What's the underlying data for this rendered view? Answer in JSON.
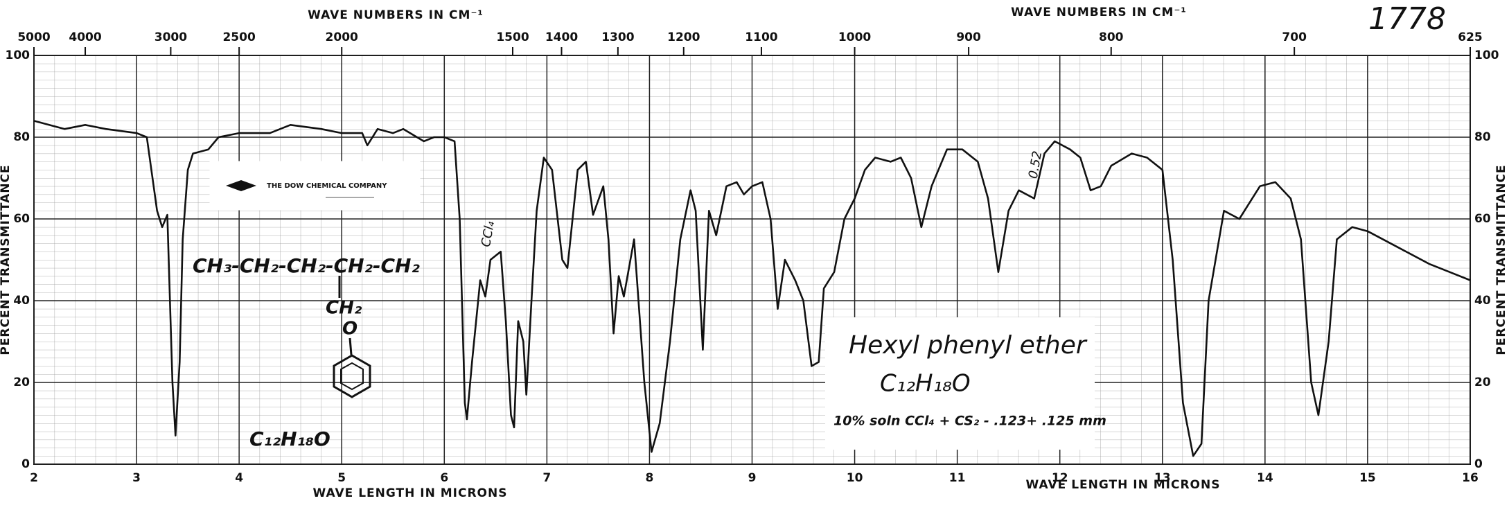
{
  "chart_data": {
    "type": "line",
    "xlabel": "WAVE LENGTH IN MICRONS",
    "x2label": "WAVE NUMBERS IN CM⁻¹",
    "ylabel": "PERCENT TRANSMITTANCE",
    "color": "#111111",
    "grid": true,
    "xlim": [
      2,
      16
    ],
    "xticks": [
      2,
      3,
      4,
      5,
      6,
      7,
      8,
      9,
      10,
      11,
      12,
      13,
      14,
      15,
      16
    ],
    "x2lim": [
      5000,
      625
    ],
    "x2ticks": [
      5000,
      4000,
      3000,
      2500,
      2000,
      1500,
      1400,
      1300,
      1200,
      1100,
      1000,
      900,
      800,
      700,
      625
    ],
    "ylim": [
      0,
      100
    ],
    "yticks": [
      0,
      20,
      40,
      60,
      80,
      100
    ],
    "x": [
      2.0,
      2.3,
      2.5,
      2.7,
      3.0,
      3.1,
      3.2,
      3.25,
      3.3,
      3.35,
      3.38,
      3.42,
      3.45,
      3.5,
      3.55,
      3.7,
      3.8,
      4.0,
      4.3,
      4.5,
      4.8,
      5.0,
      5.2,
      5.25,
      5.35,
      5.5,
      5.6,
      5.8,
      5.9,
      6.0,
      6.1,
      6.15,
      6.2,
      6.22,
      6.27,
      6.35,
      6.4,
      6.45,
      6.55,
      6.6,
      6.65,
      6.68,
      6.72,
      6.77,
      6.8,
      6.85,
      6.9,
      6.97,
      7.05,
      7.15,
      7.2,
      7.3,
      7.38,
      7.45,
      7.55,
      7.6,
      7.65,
      7.7,
      7.75,
      7.85,
      7.95,
      8.02,
      8.1,
      8.2,
      8.3,
      8.4,
      8.45,
      8.52,
      8.58,
      8.65,
      8.75,
      8.85,
      8.92,
      9.0,
      9.1,
      9.18,
      9.25,
      9.32,
      9.42,
      9.5,
      9.58,
      9.65,
      9.7,
      9.8,
      9.9,
      10.0,
      10.1,
      10.2,
      10.35,
      10.45,
      10.55,
      10.65,
      10.75,
      10.9,
      11.05,
      11.2,
      11.3,
      11.4,
      11.5,
      11.6,
      11.75,
      11.85,
      11.95,
      12.1,
      12.2,
      12.3,
      12.4,
      12.5,
      12.7,
      12.85,
      13.0,
      13.1,
      13.2,
      13.3,
      13.38,
      13.45,
      13.6,
      13.75,
      13.85,
      13.95,
      14.1,
      14.25,
      14.35,
      14.45,
      14.52,
      14.62,
      14.7,
      14.85,
      15.0,
      15.3,
      15.6,
      15.8,
      16.0
    ],
    "values": [
      84,
      82,
      83,
      82,
      81,
      80,
      62,
      58,
      61,
      20,
      7,
      25,
      55,
      72,
      76,
      77,
      80,
      81,
      81,
      83,
      82,
      81,
      81,
      78,
      82,
      81,
      82,
      79,
      80,
      80,
      79,
      60,
      15,
      11,
      25,
      45,
      41,
      50,
      52,
      35,
      12,
      9,
      35,
      30,
      17,
      40,
      62,
      75,
      72,
      50,
      48,
      72,
      74,
      61,
      68,
      55,
      32,
      46,
      41,
      55,
      20,
      3,
      10,
      30,
      55,
      67,
      62,
      28,
      62,
      56,
      68,
      69,
      66,
      68,
      69,
      60,
      38,
      50,
      45,
      40,
      24,
      25,
      43,
      47,
      60,
      65,
      72,
      75,
      74,
      75,
      70,
      58,
      68,
      77,
      77,
      74,
      65,
      47,
      62,
      67,
      65,
      76,
      79,
      77,
      75,
      67,
      68,
      73,
      76,
      75,
      72,
      50,
      15,
      2,
      5,
      40,
      62,
      60,
      64,
      68,
      69,
      65,
      55,
      20,
      12,
      30,
      55,
      58,
      57,
      53,
      49,
      47,
      45
    ],
    "annotations": [
      {
        "text": "1778"
      },
      {
        "text": "THE DOW CHEMICAL COMPANY"
      },
      {
        "text": "CH₃-CH₂-CH₂-CH₂-CH₂"
      },
      {
        "text": "CH₂"
      },
      {
        "text": "O"
      },
      {
        "text": "C₁₂H₁₈O"
      },
      {
        "text": "Hexyl phenyl ether"
      },
      {
        "text": "C₁₂H₁₈O"
      },
      {
        "text": "10% soln CCl₄ + CS₂ - .123+ .125 mm"
      },
      {
        "text": "CCl₄"
      },
      {
        "text": "0.52"
      }
    ]
  }
}
